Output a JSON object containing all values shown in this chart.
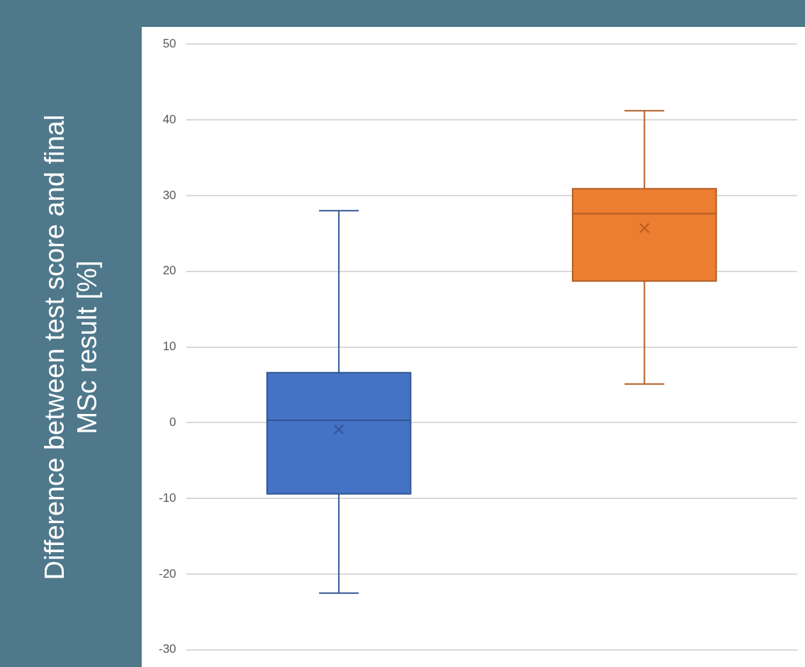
{
  "chart_data": {
    "type": "box",
    "ylabel": "Difference between test score and final MSc result [%]",
    "categories": [
      null,
      null
    ],
    "colors": [
      "#4472c4",
      "#ed7d31"
    ],
    "boxes": [
      {
        "low": -22.5,
        "q1": -9.4,
        "median": 0.3,
        "q3": 6.6,
        "high": 28,
        "mean": -0.9
      },
      {
        "low": 5.1,
        "q1": 18.7,
        "median": 27.6,
        "q3": 30.9,
        "high": 41.2,
        "mean": 25.7
      }
    ],
    "ylim": [
      -30,
      50
    ],
    "yticks": [
      -30,
      -20,
      -10,
      0,
      10,
      20,
      30,
      40,
      50
    ],
    "grid": "y",
    "marker": "cross"
  }
}
